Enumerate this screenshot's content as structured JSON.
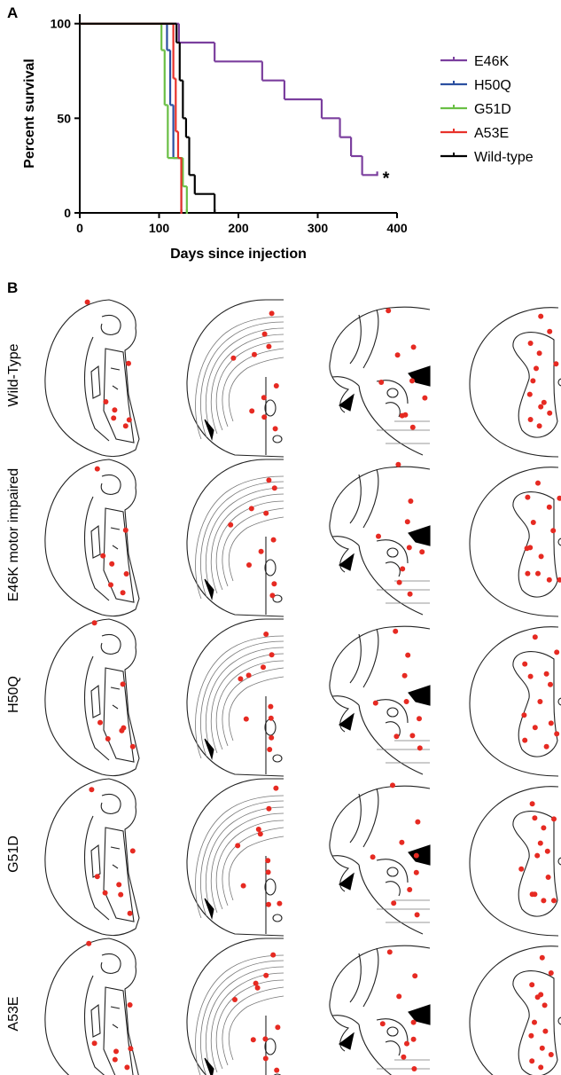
{
  "panel_labels": [
    "A",
    "B"
  ],
  "chart_data": {
    "type": "step",
    "y_label": "Percent survival",
    "x_label": "Days since injection",
    "xlim": [
      0,
      400
    ],
    "ylim": [
      0,
      105
    ],
    "xticks": [
      0,
      100,
      200,
      300,
      400
    ],
    "yticks": [
      0,
      50,
      100
    ],
    "grid": false,
    "legend": "right",
    "annotation": "*",
    "series": [
      {
        "name": "E46K",
        "color": "#7b3f9e",
        "x": [
          0,
          125,
          170,
          230,
          258,
          305,
          328,
          342,
          356,
          375
        ],
        "values": [
          100,
          90,
          80,
          70,
          60,
          50,
          40,
          30,
          20,
          20
        ]
      },
      {
        "name": "H50Q",
        "color": "#2b4fa0",
        "x": [
          0,
          110,
          114,
          118,
          128
        ],
        "values": [
          100,
          86,
          57,
          29,
          0
        ]
      },
      {
        "name": "G51D",
        "color": "#6abf45",
        "x": [
          0,
          103,
          107,
          111,
          130,
          135
        ],
        "values": [
          100,
          86,
          57,
          29,
          14,
          0
        ]
      },
      {
        "name": "A53E",
        "color": "#e8322b",
        "x": [
          0,
          118,
          121,
          124,
          128
        ],
        "values": [
          100,
          71,
          43,
          29,
          0
        ]
      },
      {
        "name": "Wild-type",
        "color": "#000000",
        "x": [
          0,
          122,
          126,
          130,
          134,
          138,
          145,
          170
        ],
        "values": [
          100,
          90,
          70,
          50,
          40,
          20,
          10,
          0
        ]
      }
    ]
  },
  "panel_b": {
    "row_labels": [
      "Wild-Type",
      "E46K motor impaired",
      "H50Q",
      "G51D",
      "A53E"
    ]
  }
}
